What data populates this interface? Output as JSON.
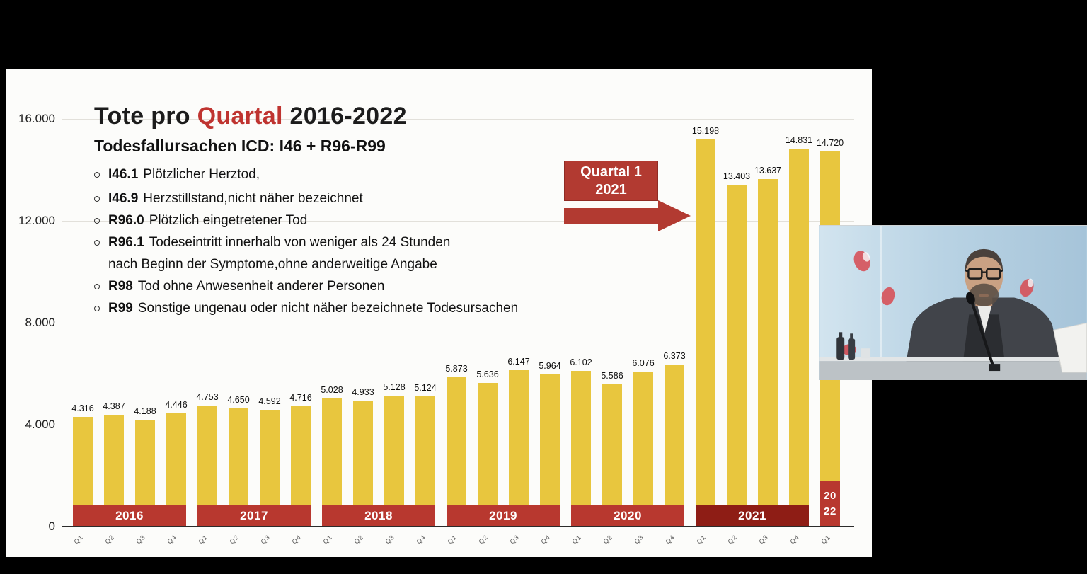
{
  "slide": {
    "title": {
      "pre": "Tote pro ",
      "highlight": "Quartal",
      "post": " 2016-2022"
    },
    "subtitle": "Todesfallursachen ICD: I46 + R96-R99",
    "bullets": [
      {
        "code": "I46.1",
        "text": "Plötzlicher Herztod,"
      },
      {
        "code": "I46.9",
        "text": "Herzstillstand,nicht näher bezeichnet"
      },
      {
        "code": "R96.0",
        "text": "Plötzlich eingetretener Tod"
      },
      {
        "code": "R96.1",
        "text": "Todeseintritt innerhalb von weniger als 24 Stunden",
        "text2": "nach Beginn der Symptome,ohne anderweitige Angabe"
      },
      {
        "code": "R98",
        "text": "Tod ohne Anwesenheit anderer Personen"
      },
      {
        "code": "R99",
        "text": "Sonstige ungenau oder nicht näher bezeichnete Todesursachen"
      }
    ],
    "callout": {
      "line1": "Quartal 1",
      "line2": "2021"
    }
  },
  "chart_data": {
    "type": "bar",
    "title": "Tote pro Quartal 2016-2022",
    "subtitle": "Todesfallursachen ICD: I46 + R96-R99",
    "xlabel": "",
    "ylabel": "",
    "ylim": [
      0,
      16000
    ],
    "grid": true,
    "legend": "none",
    "bar_color": "#e8c63e",
    "band_color": "#b8382f",
    "band_color_2021": "#8e1d15",
    "accent_red": "#bf3430",
    "yticks": [
      {
        "label": "16.000",
        "value": 16000
      },
      {
        "label": "12.000",
        "value": 12000
      },
      {
        "label": "8.000",
        "value": 8000
      },
      {
        "label": "4.000",
        "value": 4000
      },
      {
        "label": "0",
        "value": 0
      }
    ],
    "groups": [
      {
        "year": "2016",
        "values": [
          4316,
          4387,
          4188,
          4446
        ],
        "labels": [
          "4.316",
          "4.387",
          "4.188",
          "4.446"
        ],
        "ticks": [
          "Q1",
          "Q2",
          "Q3",
          "Q4"
        ]
      },
      {
        "year": "2017",
        "values": [
          4753,
          4650,
          4592,
          4716
        ],
        "labels": [
          "4.753",
          "4.650",
          "4.592",
          "4.716"
        ],
        "ticks": [
          "Q1",
          "Q2",
          "Q3",
          "Q4"
        ]
      },
      {
        "year": "2018",
        "values": [
          5028,
          4933,
          5128,
          5124
        ],
        "labels": [
          "5.028",
          "4.933",
          "5.128",
          "5.124"
        ],
        "ticks": [
          "Q1",
          "Q2",
          "Q3",
          "Q4"
        ]
      },
      {
        "year": "2019",
        "values": [
          5873,
          5636,
          6147,
          5964
        ],
        "labels": [
          "5.873",
          "5.636",
          "6.147",
          "5.964"
        ],
        "ticks": [
          "Q1",
          "Q2",
          "Q3",
          "Q4"
        ]
      },
      {
        "year": "2020",
        "values": [
          6102,
          5586,
          6076,
          6373
        ],
        "labels": [
          "6.102",
          "5.586",
          "6.076",
          "6.373"
        ],
        "ticks": [
          "Q1",
          "Q2",
          "Q3",
          "Q4"
        ]
      },
      {
        "year": "2021",
        "values": [
          15198,
          13403,
          13637,
          14831
        ],
        "labels": [
          "15.198",
          "13.403",
          "13.637",
          "14.831"
        ],
        "ticks": [
          "Q1",
          "Q2",
          "Q3",
          "Q4"
        ]
      },
      {
        "year": "2022",
        "year_lines": [
          "20",
          "22"
        ],
        "values": [
          14720
        ],
        "labels": [
          "14.720"
        ],
        "ticks": [
          "Q1"
        ]
      }
    ]
  }
}
